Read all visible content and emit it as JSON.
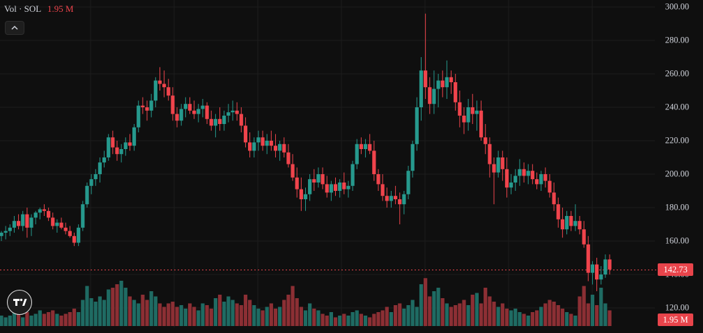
{
  "legend": {
    "name": "Vol · SOL",
    "value": "1.95 M"
  },
  "colors": {
    "up": "#26998d",
    "down": "#f0444c",
    "up_vol": "#1f6b63",
    "down_vol": "#8c2f34",
    "grid": "#1c1c1c",
    "price_line": "#e8444b"
  },
  "icons": {
    "collapse": "chevron-up-icon",
    "logo": "tradingview-logo-icon"
  },
  "last_price": "142.73",
  "last_volume": "1.95 M",
  "chart_data": {
    "type": "candlestick",
    "ylim": [
      120,
      300
    ],
    "yticks": [
      "120.00",
      "140.00",
      "160.00",
      "180.00",
      "200.00",
      "220.00",
      "240.00",
      "260.00",
      "280.00",
      "300.00"
    ],
    "candles": [
      [
        163,
        166,
        160,
        165
      ],
      [
        165,
        169,
        161,
        166
      ],
      [
        166,
        170,
        163,
        168
      ],
      [
        168,
        175,
        165,
        172
      ],
      [
        172,
        176,
        167,
        169
      ],
      [
        169,
        178,
        166,
        176
      ],
      [
        176,
        180,
        162,
        168
      ],
      [
        168,
        176,
        163,
        174
      ],
      [
        174,
        178,
        170,
        177
      ],
      [
        177,
        180,
        173,
        179
      ],
      [
        179,
        182,
        175,
        178
      ],
      [
        178,
        180,
        172,
        174
      ],
      [
        174,
        177,
        167,
        169
      ],
      [
        169,
        173,
        165,
        171
      ],
      [
        171,
        174,
        167,
        168
      ],
      [
        168,
        171,
        164,
        166
      ],
      [
        166,
        169,
        162,
        163
      ],
      [
        163,
        165,
        157,
        159
      ],
      [
        159,
        170,
        157,
        168
      ],
      [
        168,
        184,
        166,
        182
      ],
      [
        182,
        195,
        180,
        193
      ],
      [
        193,
        200,
        188,
        197
      ],
      [
        197,
        203,
        193,
        200
      ],
      [
        200,
        210,
        195,
        207
      ],
      [
        207,
        214,
        204,
        210
      ],
      [
        210,
        224,
        208,
        222
      ],
      [
        222,
        226,
        212,
        216
      ],
      [
        216,
        220,
        208,
        212
      ],
      [
        212,
        218,
        207,
        215
      ],
      [
        215,
        222,
        211,
        219
      ],
      [
        219,
        224,
        214,
        217
      ],
      [
        217,
        230,
        214,
        228
      ],
      [
        228,
        244,
        225,
        241
      ],
      [
        241,
        246,
        236,
        240
      ],
      [
        240,
        244,
        232,
        238
      ],
      [
        238,
        248,
        234,
        244
      ],
      [
        244,
        258,
        240,
        256
      ],
      [
        256,
        264,
        250,
        254
      ],
      [
        254,
        262,
        246,
        252
      ],
      [
        252,
        257,
        244,
        247
      ],
      [
        247,
        252,
        232,
        236
      ],
      [
        236,
        240,
        228,
        232
      ],
      [
        232,
        242,
        229,
        239
      ],
      [
        239,
        246,
        234,
        242
      ],
      [
        242,
        246,
        236,
        238
      ],
      [
        238,
        244,
        233,
        236
      ],
      [
        236,
        242,
        231,
        239
      ],
      [
        239,
        245,
        234,
        241
      ],
      [
        241,
        243,
        230,
        233
      ],
      [
        233,
        238,
        226,
        229
      ],
      [
        229,
        236,
        222,
        233
      ],
      [
        233,
        240,
        226,
        230
      ],
      [
        230,
        238,
        226,
        235
      ],
      [
        235,
        242,
        231,
        237
      ],
      [
        237,
        244,
        232,
        238
      ],
      [
        238,
        243,
        232,
        236
      ],
      [
        236,
        240,
        225,
        229
      ],
      [
        229,
        234,
        216,
        219
      ],
      [
        219,
        225,
        210,
        214
      ],
      [
        214,
        222,
        210,
        219
      ],
      [
        219,
        226,
        214,
        222
      ],
      [
        222,
        226,
        214,
        217
      ],
      [
        217,
        224,
        212,
        220
      ],
      [
        220,
        226,
        214,
        217
      ],
      [
        217,
        224,
        210,
        214
      ],
      [
        214,
        220,
        208,
        218
      ],
      [
        218,
        222,
        210,
        213
      ],
      [
        213,
        218,
        204,
        206
      ],
      [
        206,
        212,
        196,
        198
      ],
      [
        198,
        204,
        186,
        191
      ],
      [
        191,
        198,
        178,
        185
      ],
      [
        185,
        192,
        178,
        188
      ],
      [
        188,
        200,
        184,
        197
      ],
      [
        197,
        203,
        190,
        195
      ],
      [
        195,
        204,
        192,
        200
      ],
      [
        200,
        204,
        191,
        194
      ],
      [
        194,
        199,
        186,
        189
      ],
      [
        189,
        196,
        184,
        194
      ],
      [
        194,
        198,
        187,
        190
      ],
      [
        190,
        197,
        186,
        195
      ],
      [
        195,
        201,
        188,
        191
      ],
      [
        191,
        196,
        186,
        193
      ],
      [
        193,
        208,
        190,
        206
      ],
      [
        206,
        221,
        203,
        218
      ],
      [
        218,
        222,
        212,
        215
      ],
      [
        215,
        221,
        210,
        218
      ],
      [
        218,
        224,
        212,
        214
      ],
      [
        214,
        220,
        196,
        200
      ],
      [
        200,
        203,
        190,
        194
      ],
      [
        194,
        200,
        184,
        187
      ],
      [
        187,
        192,
        180,
        184
      ],
      [
        184,
        190,
        180,
        187
      ],
      [
        187,
        193,
        182,
        185
      ],
      [
        185,
        189,
        170,
        182
      ],
      [
        182,
        190,
        176,
        188
      ],
      [
        188,
        205,
        185,
        202
      ],
      [
        202,
        220,
        198,
        218
      ],
      [
        218,
        246,
        214,
        240
      ],
      [
        240,
        270,
        232,
        262
      ],
      [
        262,
        296,
        245,
        252
      ],
      [
        252,
        258,
        236,
        242
      ],
      [
        242,
        262,
        236,
        251
      ],
      [
        251,
        260,
        240,
        256
      ],
      [
        256,
        262,
        246,
        252
      ],
      [
        252,
        268,
        245,
        258
      ],
      [
        258,
        262,
        248,
        255
      ],
      [
        255,
        260,
        238,
        243
      ],
      [
        243,
        250,
        228,
        235
      ],
      [
        235,
        240,
        224,
        231
      ],
      [
        231,
        245,
        226,
        240
      ],
      [
        240,
        248,
        230,
        236
      ],
      [
        236,
        244,
        226,
        238
      ],
      [
        238,
        244,
        220,
        222
      ],
      [
        222,
        230,
        212,
        218
      ],
      [
        218,
        222,
        198,
        206
      ],
      [
        206,
        210,
        182,
        201
      ],
      [
        201,
        214,
        198,
        210
      ],
      [
        210,
        214,
        196,
        203
      ],
      [
        203,
        210,
        186,
        192
      ],
      [
        192,
        200,
        188,
        195
      ],
      [
        195,
        203,
        190,
        199
      ],
      [
        199,
        209,
        193,
        203
      ],
      [
        203,
        207,
        195,
        199
      ],
      [
        199,
        206,
        194,
        202
      ],
      [
        202,
        206,
        194,
        197
      ],
      [
        197,
        201,
        191,
        194
      ],
      [
        194,
        202,
        190,
        200
      ],
      [
        200,
        204,
        192,
        196
      ],
      [
        196,
        200,
        186,
        189
      ],
      [
        189,
        195,
        178,
        182
      ],
      [
        182,
        186,
        168,
        173
      ],
      [
        173,
        180,
        162,
        167
      ],
      [
        167,
        178,
        164,
        175
      ],
      [
        175,
        178,
        166,
        169
      ],
      [
        169,
        182,
        166,
        172
      ],
      [
        172,
        175,
        164,
        167
      ],
      [
        167,
        172,
        156,
        158
      ],
      [
        158,
        163,
        136,
        141
      ],
      [
        141,
        148,
        134,
        146
      ],
      [
        146,
        150,
        130,
        137
      ],
      [
        137,
        145,
        134,
        140
      ],
      [
        140,
        152,
        138,
        149
      ],
      [
        149,
        152,
        140,
        143
      ]
    ],
    "volumes": [
      0.12,
      0.1,
      0.12,
      0.16,
      0.14,
      0.1,
      0.16,
      0.12,
      0.14,
      0.18,
      0.14,
      0.16,
      0.18,
      0.14,
      0.12,
      0.14,
      0.16,
      0.2,
      0.16,
      0.3,
      0.46,
      0.32,
      0.28,
      0.34,
      0.3,
      0.42,
      0.44,
      0.48,
      0.52,
      0.44,
      0.34,
      0.3,
      0.26,
      0.36,
      0.3,
      0.4,
      0.34,
      0.26,
      0.22,
      0.26,
      0.28,
      0.22,
      0.24,
      0.2,
      0.26,
      0.22,
      0.18,
      0.26,
      0.24,
      0.2,
      0.32,
      0.36,
      0.28,
      0.34,
      0.3,
      0.26,
      0.24,
      0.36,
      0.3,
      0.24,
      0.2,
      0.18,
      0.22,
      0.26,
      0.2,
      0.22,
      0.3,
      0.36,
      0.46,
      0.32,
      0.22,
      0.18,
      0.26,
      0.2,
      0.18,
      0.14,
      0.12,
      0.16,
      0.1,
      0.12,
      0.14,
      0.12,
      0.16,
      0.18,
      0.14,
      0.12,
      0.1,
      0.14,
      0.16,
      0.18,
      0.22,
      0.16,
      0.24,
      0.26,
      0.2,
      0.24,
      0.3,
      0.22,
      0.48,
      0.55,
      0.34,
      0.4,
      0.44,
      0.32,
      0.26,
      0.22,
      0.24,
      0.26,
      0.3,
      0.24,
      0.36,
      0.38,
      0.26,
      0.44,
      0.34,
      0.28,
      0.22,
      0.26,
      0.2,
      0.18,
      0.2,
      0.16,
      0.14,
      0.12,
      0.16,
      0.18,
      0.22,
      0.26,
      0.3,
      0.28,
      0.24,
      0.2,
      0.16,
      0.14,
      0.12,
      0.34,
      0.46,
      0.26,
      0.36,
      0.24,
      0.44,
      0.26,
      0.18
    ]
  }
}
